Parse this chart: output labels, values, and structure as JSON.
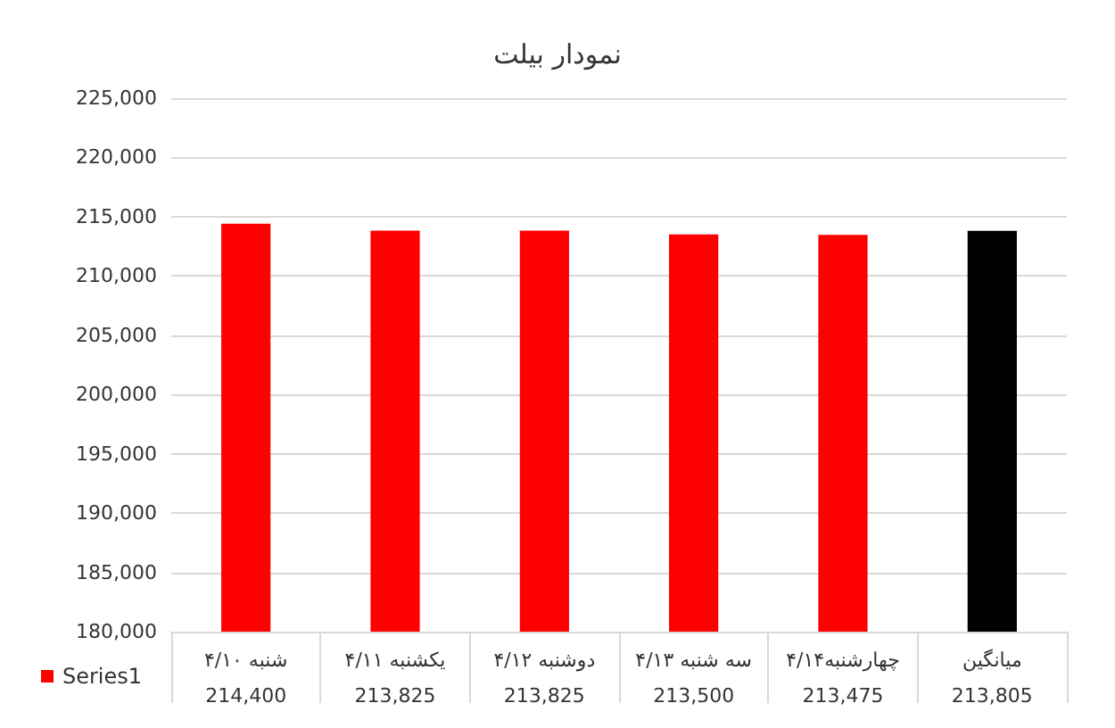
{
  "chart_data": {
    "type": "bar",
    "title": "نمودار بیلت",
    "categories": [
      "شنبه ۴/۱۰",
      "یکشنبه ۴/۱۱",
      "دوشنبه ۴/۱۲",
      "سه شنبه ۴/۱۳",
      "چهارشنبه۴/۱۴",
      "میانگین"
    ],
    "series": [
      {
        "name": "Series1",
        "color": "#ff0000",
        "colors": [
          "#ff0000",
          "#ff0000",
          "#ff0000",
          "#ff0000",
          "#ff0000",
          "#000000"
        ],
        "values": [
          214400,
          213825,
          213825,
          213500,
          213475,
          213805
        ],
        "value_labels": [
          "214,400",
          "213,825",
          "213,825",
          "213,500",
          "213,475",
          "213,805"
        ]
      }
    ],
    "ylim": [
      180000,
      225000
    ],
    "yticks": [
      {
        "value": 180000,
        "label": "180,000"
      },
      {
        "value": 185000,
        "label": "185,000"
      },
      {
        "value": 190000,
        "label": "190,000"
      },
      {
        "value": 195000,
        "label": "195,000"
      },
      {
        "value": 200000,
        "label": "200,000"
      },
      {
        "value": 205000,
        "label": "205,000"
      },
      {
        "value": 210000,
        "label": "210,000"
      },
      {
        "value": 215000,
        "label": "215,000"
      },
      {
        "value": 220000,
        "label": "220,000"
      },
      {
        "value": 225000,
        "label": "225,000"
      }
    ],
    "grid": "y",
    "legend": "bottom left"
  }
}
